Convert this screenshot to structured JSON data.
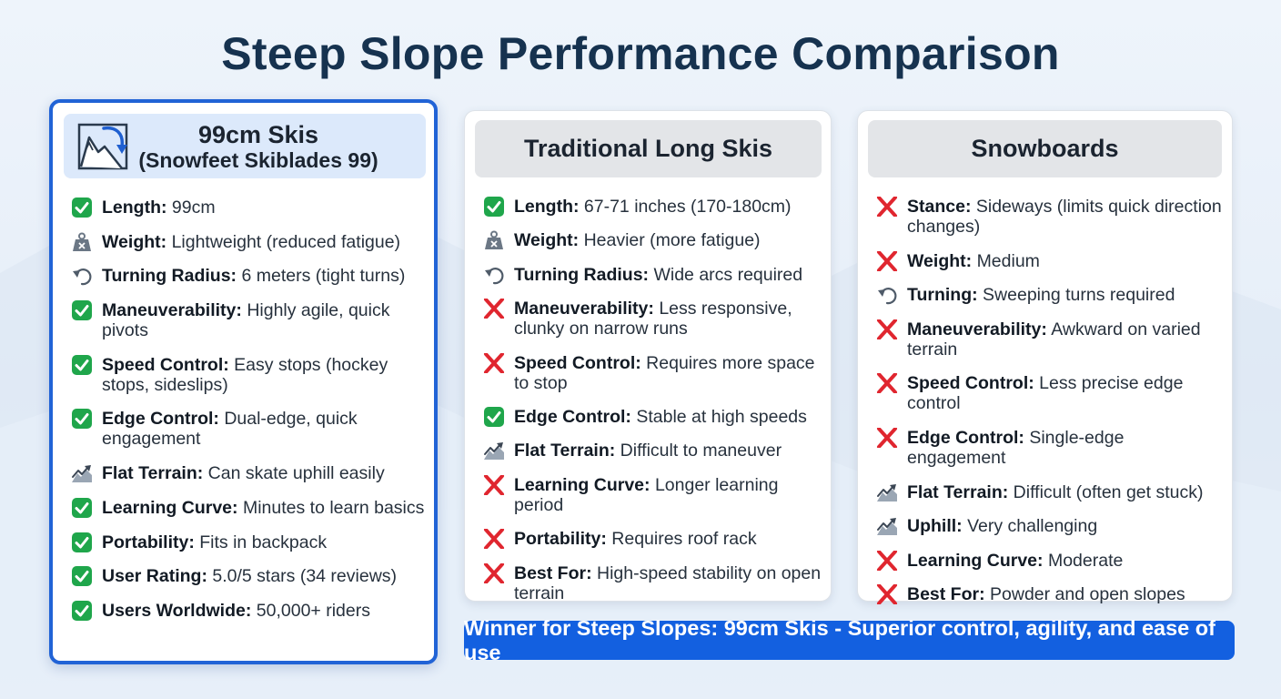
{
  "title": "Steep Slope Performance Comparison",
  "colors": {
    "accent": "#1360e0",
    "card_border_highlight": "#2163d6",
    "check_green": "#1fa64b",
    "cross_red": "#e0262f",
    "title": "#16324f"
  },
  "cards": [
    {
      "title": "99cm Skis",
      "subtitle": "(Snowfeet Skiblades 99)",
      "header_icon": "mountain-slope-arrow-icon",
      "items": [
        {
          "icon": "check-icon",
          "label": "Length:",
          "value": "99cm"
        },
        {
          "icon": "weight-icon",
          "label": "Weight:",
          "value": "Lightweight (reduced fatigue)"
        },
        {
          "icon": "turn-arrow-icon",
          "label": "Turning Radius:",
          "value": "6 meters (tight turns)"
        },
        {
          "icon": "check-icon",
          "label": "Maneuverability:",
          "value": "Highly agile, quick pivots"
        },
        {
          "icon": "check-icon",
          "label": "Speed Control:",
          "value": "Easy stops (hockey stops, sideslips)"
        },
        {
          "icon": "check-icon",
          "label": "Edge Control:",
          "value": "Dual-edge, quick engagement"
        },
        {
          "icon": "terrain-icon",
          "label": "Flat Terrain:",
          "value": "Can skate uphill easily"
        },
        {
          "icon": "check-icon",
          "label": "Learning Curve:",
          "value": "Minutes to learn basics"
        },
        {
          "icon": "check-icon",
          "label": "Portability:",
          "value": "Fits in backpack"
        },
        {
          "icon": "check-icon",
          "label": "User Rating:",
          "value": "5.0/5 stars (34 reviews)"
        },
        {
          "icon": "check-icon",
          "label": "Users Worldwide:",
          "value": "50,000+ riders"
        }
      ]
    },
    {
      "title": "Traditional Long Skis",
      "items": [
        {
          "icon": "check-icon",
          "label": "Length:",
          "value": "67-71 inches (170-180cm)"
        },
        {
          "icon": "weight-icon",
          "label": "Weight:",
          "value": "Heavier (more fatigue)"
        },
        {
          "icon": "turn-arrow-icon",
          "label": "Turning Radius:",
          "value": "Wide arcs required"
        },
        {
          "icon": "cross-icon",
          "label": "Maneuverability:",
          "value": "Less responsive, clunky on narrow runs"
        },
        {
          "icon": "cross-icon",
          "label": "Speed Control:",
          "value": "Requires more space to stop"
        },
        {
          "icon": "check-icon",
          "label": "Edge Control:",
          "value": "Stable at high speeds"
        },
        {
          "icon": "terrain-icon",
          "label": "Flat Terrain:",
          "value": "Difficult to maneuver"
        },
        {
          "icon": "cross-icon",
          "label": "Learning Curve:",
          "value": "Longer learning period"
        },
        {
          "icon": "cross-icon",
          "label": "Portability:",
          "value": "Requires roof rack"
        },
        {
          "icon": "cross-icon",
          "label": "Best For:",
          "value": "High-speed stability on open terrain"
        }
      ]
    },
    {
      "title": "Snowboards",
      "items": [
        {
          "icon": "cross-icon",
          "label": "Stance:",
          "value": "Sideways (limits quick direction changes)"
        },
        {
          "icon": "cross-icon",
          "label": "Weight:",
          "value": "Medium"
        },
        {
          "icon": "turn-arrow-icon",
          "label": "Turning:",
          "value": "Sweeping turns required"
        },
        {
          "icon": "cross-icon",
          "label": "Maneuverability:",
          "value": "Awkward on varied terrain"
        },
        {
          "icon": "cross-icon",
          "label": "Speed Control:",
          "value": "Less precise edge control"
        },
        {
          "icon": "cross-icon",
          "label": "Edge Control:",
          "value": "Single-edge engagement"
        },
        {
          "icon": "terrain-icon",
          "label": "Flat Terrain:",
          "value": "Difficult (often get stuck)"
        },
        {
          "icon": "terrain-icon",
          "label": "Uphill:",
          "value": "Very challenging"
        },
        {
          "icon": "cross-icon",
          "label": "Learning Curve:",
          "value": "Moderate"
        },
        {
          "icon": "cross-icon",
          "label": "Best For:",
          "value": "Powder and open slopes"
        }
      ]
    }
  ],
  "winner": "Winner for Steep Slopes: 99cm Skis - Superior control, agility, and ease of use"
}
